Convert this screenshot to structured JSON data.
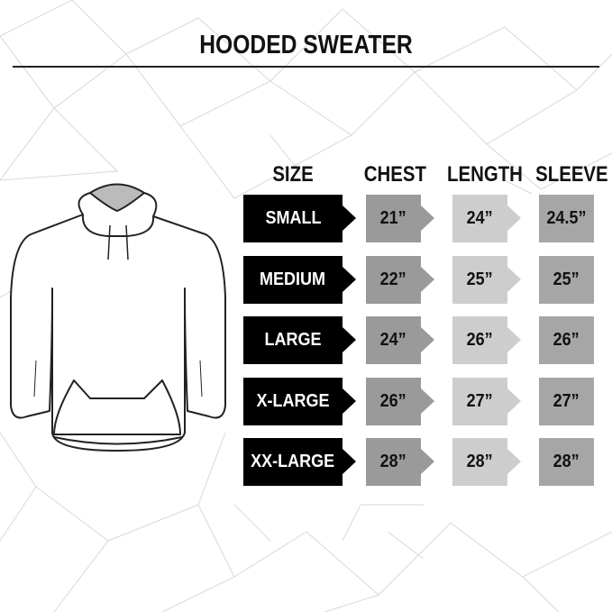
{
  "title": "HOODED SWEATER",
  "headers": {
    "size": "SIZE",
    "chest": "CHEST",
    "length": "LENGTH",
    "sleeve": "SLEEVE"
  },
  "rows": [
    {
      "size": "SMALL",
      "chest": "21”",
      "length": "24”",
      "sleeve": "24.5”"
    },
    {
      "size": "MEDIUM",
      "chest": "22”",
      "length": "25”",
      "sleeve": "25”"
    },
    {
      "size": "LARGE",
      "chest": "24”",
      "length": "26”",
      "sleeve": "26”"
    },
    {
      "size": "X-LARGE",
      "chest": "26”",
      "length": "27”",
      "sleeve": "27”"
    },
    {
      "size": "XX-LARGE",
      "chest": "28”",
      "length": "28”",
      "sleeve": "28”"
    }
  ],
  "colors": {
    "size": "#000000",
    "chest": "#9a9a9a",
    "length": "#cdcdcd",
    "sleeve": "#a6a6a6"
  }
}
